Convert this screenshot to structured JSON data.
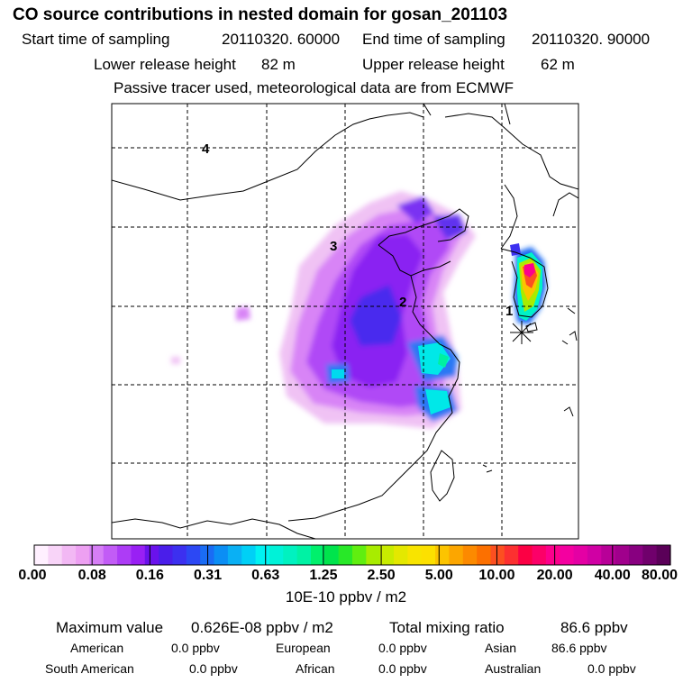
{
  "header": {
    "title": "CO  source contributions in nested domain for gosan_201103",
    "start_label": "Start time of sampling",
    "start_value": "20110320. 60000",
    "end_label": "End time of sampling",
    "end_value": "20110320. 90000",
    "lower_label": "Lower release height",
    "lower_value": "82 m",
    "upper_label": "Upper release height",
    "upper_value": "62 m",
    "note": "Passive tracer used, meteorological data are from ECMWF"
  },
  "map": {
    "labels": [
      "1",
      "2",
      "3",
      "4"
    ],
    "receptor_icon": "receptor-asterisk-icon",
    "colors": {
      "frame": "#000000",
      "grid": "#000000",
      "coast": "#000000"
    }
  },
  "colorbar": {
    "ticks": [
      "0.00",
      "0.08",
      "0.16",
      "0.31",
      "0.63",
      "1.25",
      "2.50",
      "5.00",
      "10.00",
      "20.00",
      "40.00",
      "80.00"
    ],
    "colors": [
      "#fff0ff",
      "#f8d4f8",
      "#f2b8f4",
      "#eda0f2",
      "#d67ef6",
      "#c25cf6",
      "#ad3cf6",
      "#9920f4",
      "#6a12ec",
      "#4a1eea",
      "#3c30f0",
      "#2c48f4",
      "#1a6cf4",
      "#0b8ef4",
      "#0ab0f4",
      "#00d0f6",
      "#00f2f2",
      "#00f2d8",
      "#00f2c0",
      "#00f2a4",
      "#00f06c",
      "#00e44c",
      "#28e828",
      "#60ee10",
      "#a8ec00",
      "#c8ec00",
      "#e4e800",
      "#f8e400",
      "#fce000",
      "#fcc400",
      "#fca600",
      "#fc8a00",
      "#fc7000",
      "#fc5020",
      "#fc3030",
      "#fc0044",
      "#fc0068",
      "#fc008c",
      "#f400a0",
      "#e400a4",
      "#d000a4",
      "#b80098",
      "#a0008c",
      "#880080",
      "#70006c",
      "#5a0058"
    ],
    "unit": "10E-10 ppbv / m2"
  },
  "summary": {
    "max_label": "Maximum value",
    "max_value": "0.626E-08 ppbv / m2",
    "total_label": "Total mixing ratio",
    "total_value": "86.6 ppbv",
    "regions": [
      {
        "name": "American",
        "value": "0.0 ppbv"
      },
      {
        "name": "European",
        "value": "0.0 ppbv"
      },
      {
        "name": "Asian",
        "value": "86.6 ppbv"
      },
      {
        "name": "South American",
        "value": "0.0 ppbv"
      },
      {
        "name": "African",
        "value": "0.0 ppbv"
      },
      {
        "name": "Australian",
        "value": "0.0 ppbv"
      }
    ]
  }
}
